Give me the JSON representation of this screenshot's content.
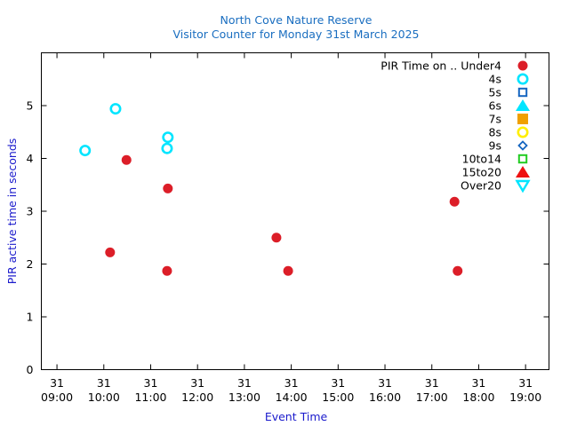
{
  "chart_data": {
    "type": "scatter",
    "title": "North Cove Nature Reserve",
    "subtitle": "Visitor Counter for Monday 31st March 2025",
    "xlabel": "Event Time",
    "ylabel": "PIR active time in seconds",
    "xlim": [
      "31 08:40",
      "31 19:30"
    ],
    "ylim": [
      0,
      6
    ],
    "x_ticks": [
      {
        "day": "31",
        "time": "09:00"
      },
      {
        "day": "31",
        "time": "10:00"
      },
      {
        "day": "31",
        "time": "11:00"
      },
      {
        "day": "31",
        "time": "12:00"
      },
      {
        "day": "31",
        "time": "13:00"
      },
      {
        "day": "31",
        "time": "14:00"
      },
      {
        "day": "31",
        "time": "15:00"
      },
      {
        "day": "31",
        "time": "16:00"
      },
      {
        "day": "31",
        "time": "17:00"
      },
      {
        "day": "31",
        "time": "18:00"
      },
      {
        "day": "31",
        "time": "19:00"
      }
    ],
    "y_ticks": [
      "0",
      "1",
      "2",
      "3",
      "4",
      "5"
    ],
    "grid": false,
    "legend_position": "top-right",
    "series": [
      {
        "name": "PIR Time on .. Under4",
        "marker": "filled-circle",
        "color": "#dc1e28",
        "points": [
          {
            "x": "10:08",
            "y": 2.22
          },
          {
            "x": "10:29",
            "y": 3.97
          },
          {
            "x": "11:21",
            "y": 1.87
          },
          {
            "x": "11:22",
            "y": 3.43
          },
          {
            "x": "13:41",
            "y": 2.5
          },
          {
            "x": "13:56",
            "y": 1.87
          },
          {
            "x": "17:29",
            "y": 3.18
          },
          {
            "x": "17:33",
            "y": 1.87
          }
        ]
      },
      {
        "name": "4s",
        "marker": "open-circle",
        "color": "#00e5ff",
        "points": [
          {
            "x": "09:36",
            "y": 4.15
          },
          {
            "x": "10:15",
            "y": 4.94
          },
          {
            "x": "11:21",
            "y": 4.19
          },
          {
            "x": "11:22",
            "y": 4.4
          }
        ]
      },
      {
        "name": "5s",
        "marker": "open-square",
        "color": "#1565c0",
        "points": []
      },
      {
        "name": "6s",
        "marker": "filled-triangle",
        "color": "#00e5ff",
        "points": []
      },
      {
        "name": "7s",
        "marker": "filled-square",
        "color": "#f0a000",
        "points": []
      },
      {
        "name": "8s",
        "marker": "open-circle",
        "color": "#ffee00",
        "points": []
      },
      {
        "name": "9s",
        "marker": "open-diamond",
        "color": "#1565c0",
        "points": []
      },
      {
        "name": "10to14",
        "marker": "open-square",
        "color": "#22cc22",
        "points": []
      },
      {
        "name": "15to20",
        "marker": "filled-triangle",
        "color": "#ee1111",
        "points": []
      },
      {
        "name": "Over20",
        "marker": "open-triangle-down",
        "color": "#00e5ff",
        "points": []
      }
    ]
  }
}
